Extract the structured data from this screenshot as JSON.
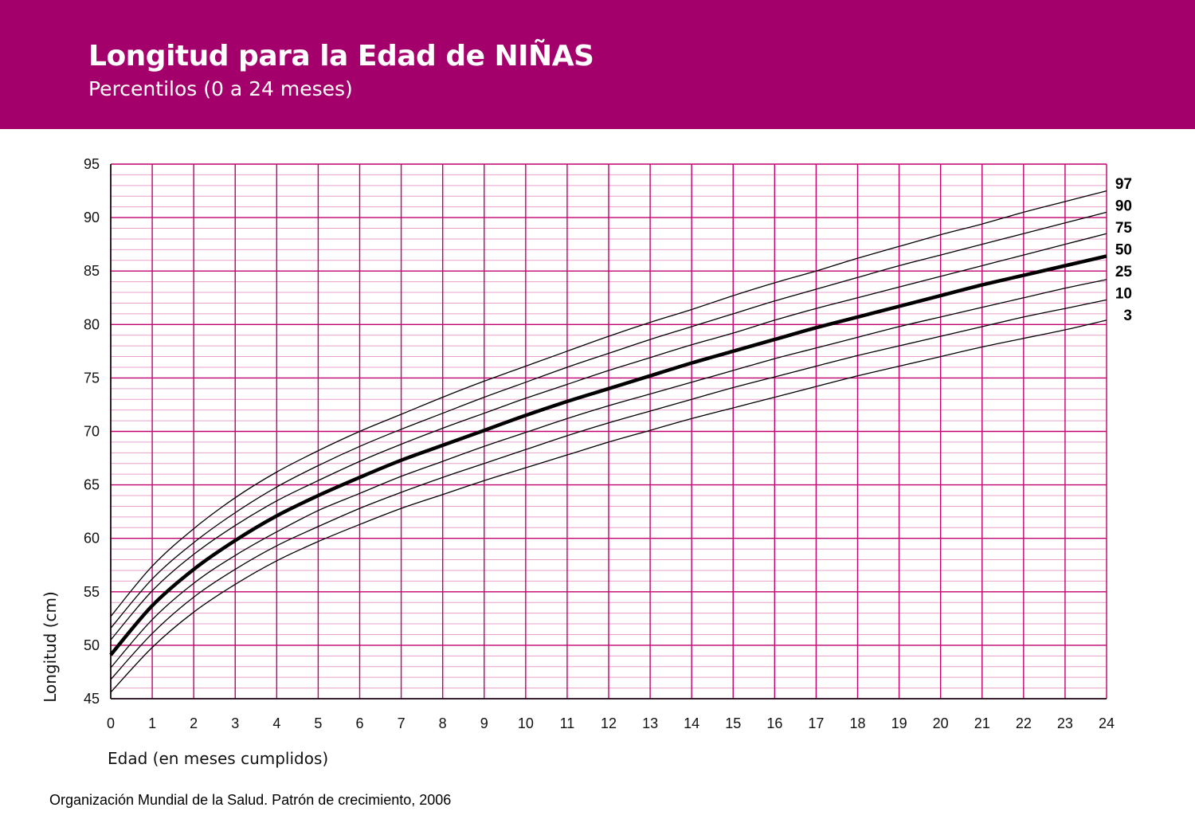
{
  "header": {
    "title": "Longitud para la Edad de NIÑAS",
    "subtitle": "Percentilos (0 a 24 meses)"
  },
  "footer": {
    "source": "Organización Mundial de la Salud. Patrón de crecimiento, 2006"
  },
  "colors": {
    "header_background": "#a4006b",
    "grid_major": "#c0006f",
    "grid_minor": "#e8a0cc",
    "curve": "#000000"
  },
  "chart_data": {
    "type": "line",
    "title": "Longitud para la Edad de NIÑAS",
    "subtitle": "Percentilos (0 a 24 meses)",
    "xlabel": "Edad (en meses cumplidos)",
    "ylabel": "Longitud (cm)",
    "xlim": [
      0,
      24
    ],
    "ylim": [
      45,
      95
    ],
    "x_ticks": [
      "0",
      "1",
      "2",
      "3",
      "4",
      "5",
      "6",
      "7",
      "8",
      "9",
      "10",
      "11",
      "12",
      "13",
      "14",
      "15",
      "16",
      "17",
      "18",
      "19",
      "20",
      "21",
      "22",
      "23",
      "24"
    ],
    "y_ticks": [
      "45",
      "50",
      "55",
      "60",
      "65",
      "70",
      "75",
      "80",
      "85",
      "90",
      "95"
    ],
    "grid": "on (major every 1 month and 5 cm, minor every 1 cm)",
    "legend": "percentile labels at right end of curves",
    "x": [
      0,
      1,
      2,
      3,
      4,
      5,
      6,
      7,
      8,
      9,
      10,
      11,
      12,
      13,
      14,
      15,
      16,
      17,
      18,
      19,
      20,
      21,
      22,
      23,
      24
    ],
    "series": [
      {
        "name": "97",
        "emphasis": false,
        "values": [
          52.7,
          57.4,
          60.9,
          63.8,
          66.2,
          68.2,
          70.0,
          71.6,
          73.2,
          74.7,
          76.1,
          77.5,
          78.9,
          80.2,
          81.4,
          82.7,
          83.9,
          85.0,
          86.2,
          87.3,
          88.4,
          89.4,
          90.5,
          91.5,
          92.5
        ]
      },
      {
        "name": "90",
        "emphasis": false,
        "values": [
          51.6,
          56.2,
          59.6,
          62.4,
          64.8,
          66.8,
          68.6,
          70.2,
          71.7,
          73.2,
          74.6,
          76.0,
          77.3,
          78.6,
          79.8,
          81.0,
          82.2,
          83.3,
          84.4,
          85.5,
          86.5,
          87.5,
          88.5,
          89.5,
          90.5
        ]
      },
      {
        "name": "75",
        "emphasis": false,
        "values": [
          50.5,
          55.1,
          58.5,
          61.2,
          63.5,
          65.4,
          67.2,
          68.8,
          70.3,
          71.7,
          73.1,
          74.4,
          75.7,
          76.9,
          78.1,
          79.2,
          80.4,
          81.5,
          82.5,
          83.5,
          84.5,
          85.5,
          86.5,
          87.5,
          88.5
        ]
      },
      {
        "name": "50",
        "emphasis": true,
        "values": [
          49.1,
          53.7,
          57.1,
          59.8,
          62.1,
          64.0,
          65.7,
          67.3,
          68.7,
          70.1,
          71.5,
          72.8,
          74.0,
          75.2,
          76.4,
          77.5,
          78.6,
          79.7,
          80.7,
          81.7,
          82.7,
          83.7,
          84.6,
          85.5,
          86.4
        ]
      },
      {
        "name": "25",
        "emphasis": false,
        "values": [
          47.9,
          52.4,
          55.8,
          58.4,
          60.6,
          62.6,
          64.2,
          65.8,
          67.2,
          68.6,
          69.9,
          71.2,
          72.4,
          73.5,
          74.6,
          75.7,
          76.8,
          77.8,
          78.8,
          79.8,
          80.7,
          81.6,
          82.5,
          83.4,
          84.2
        ]
      },
      {
        "name": "10",
        "emphasis": false,
        "values": [
          46.8,
          51.1,
          54.5,
          57.1,
          59.3,
          61.1,
          62.8,
          64.3,
          65.7,
          67.0,
          68.3,
          69.6,
          70.8,
          71.9,
          73.0,
          74.1,
          75.1,
          76.1,
          77.1,
          78.0,
          78.9,
          79.8,
          80.7,
          81.5,
          82.3
        ]
      },
      {
        "name": "3",
        "emphasis": false,
        "values": [
          45.6,
          49.8,
          53.1,
          55.7,
          57.9,
          59.7,
          61.3,
          62.8,
          64.1,
          65.4,
          66.6,
          67.8,
          69.0,
          70.1,
          71.2,
          72.2,
          73.2,
          74.2,
          75.2,
          76.1,
          77.0,
          77.9,
          78.7,
          79.5,
          80.4
        ]
      }
    ]
  }
}
